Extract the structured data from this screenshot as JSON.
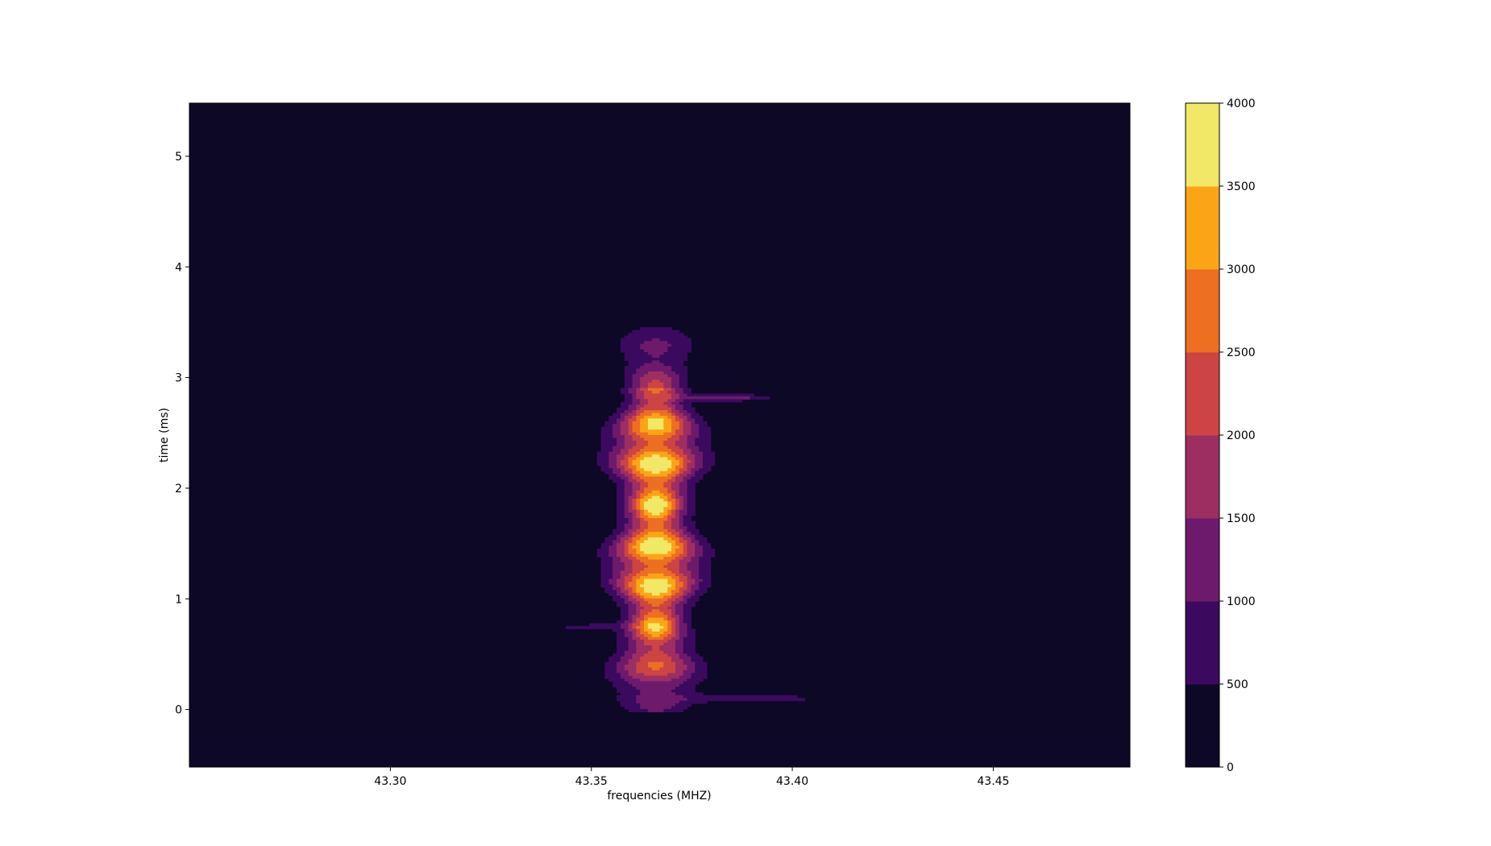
{
  "chart_data": {
    "type": "heatmap",
    "subtype": "filled contour",
    "xlabel": "frequencies (MHZ)",
    "ylabel": "time (ms)",
    "xlim": [
      43.25,
      43.484
    ],
    "ylim": [
      -0.52,
      5.48
    ],
    "xticks": [
      {
        "value": 43.3,
        "label": "43.30"
      },
      {
        "value": 43.35,
        "label": "43.35"
      },
      {
        "value": 43.4,
        "label": "43.40"
      },
      {
        "value": 43.45,
        "label": "43.45"
      }
    ],
    "yticks": [
      {
        "value": 0,
        "label": "0"
      },
      {
        "value": 1,
        "label": "1"
      },
      {
        "value": 2,
        "label": "2"
      },
      {
        "value": 3,
        "label": "3"
      },
      {
        "value": 4,
        "label": "4"
      },
      {
        "value": 5,
        "label": "5"
      }
    ],
    "colorbar": {
      "range": [
        0,
        4000
      ],
      "levels": [
        0,
        500,
        1000,
        1500,
        2000,
        2500,
        3000,
        3500,
        4000
      ],
      "tick_labels": [
        "0",
        "500",
        "1000",
        "1500",
        "2000",
        "2500",
        "3000",
        "3500",
        "4000"
      ],
      "colors": [
        "#0c0826",
        "#3b0a5e",
        "#6e1a6c",
        "#9c2e62",
        "#cc4444",
        "#ed6f22",
        "#fba516",
        "#f0e866"
      ]
    },
    "signal": {
      "center_frequency": 43.366,
      "time_range": [
        0.0,
        3.7
      ],
      "peak_value": 4000
    }
  }
}
